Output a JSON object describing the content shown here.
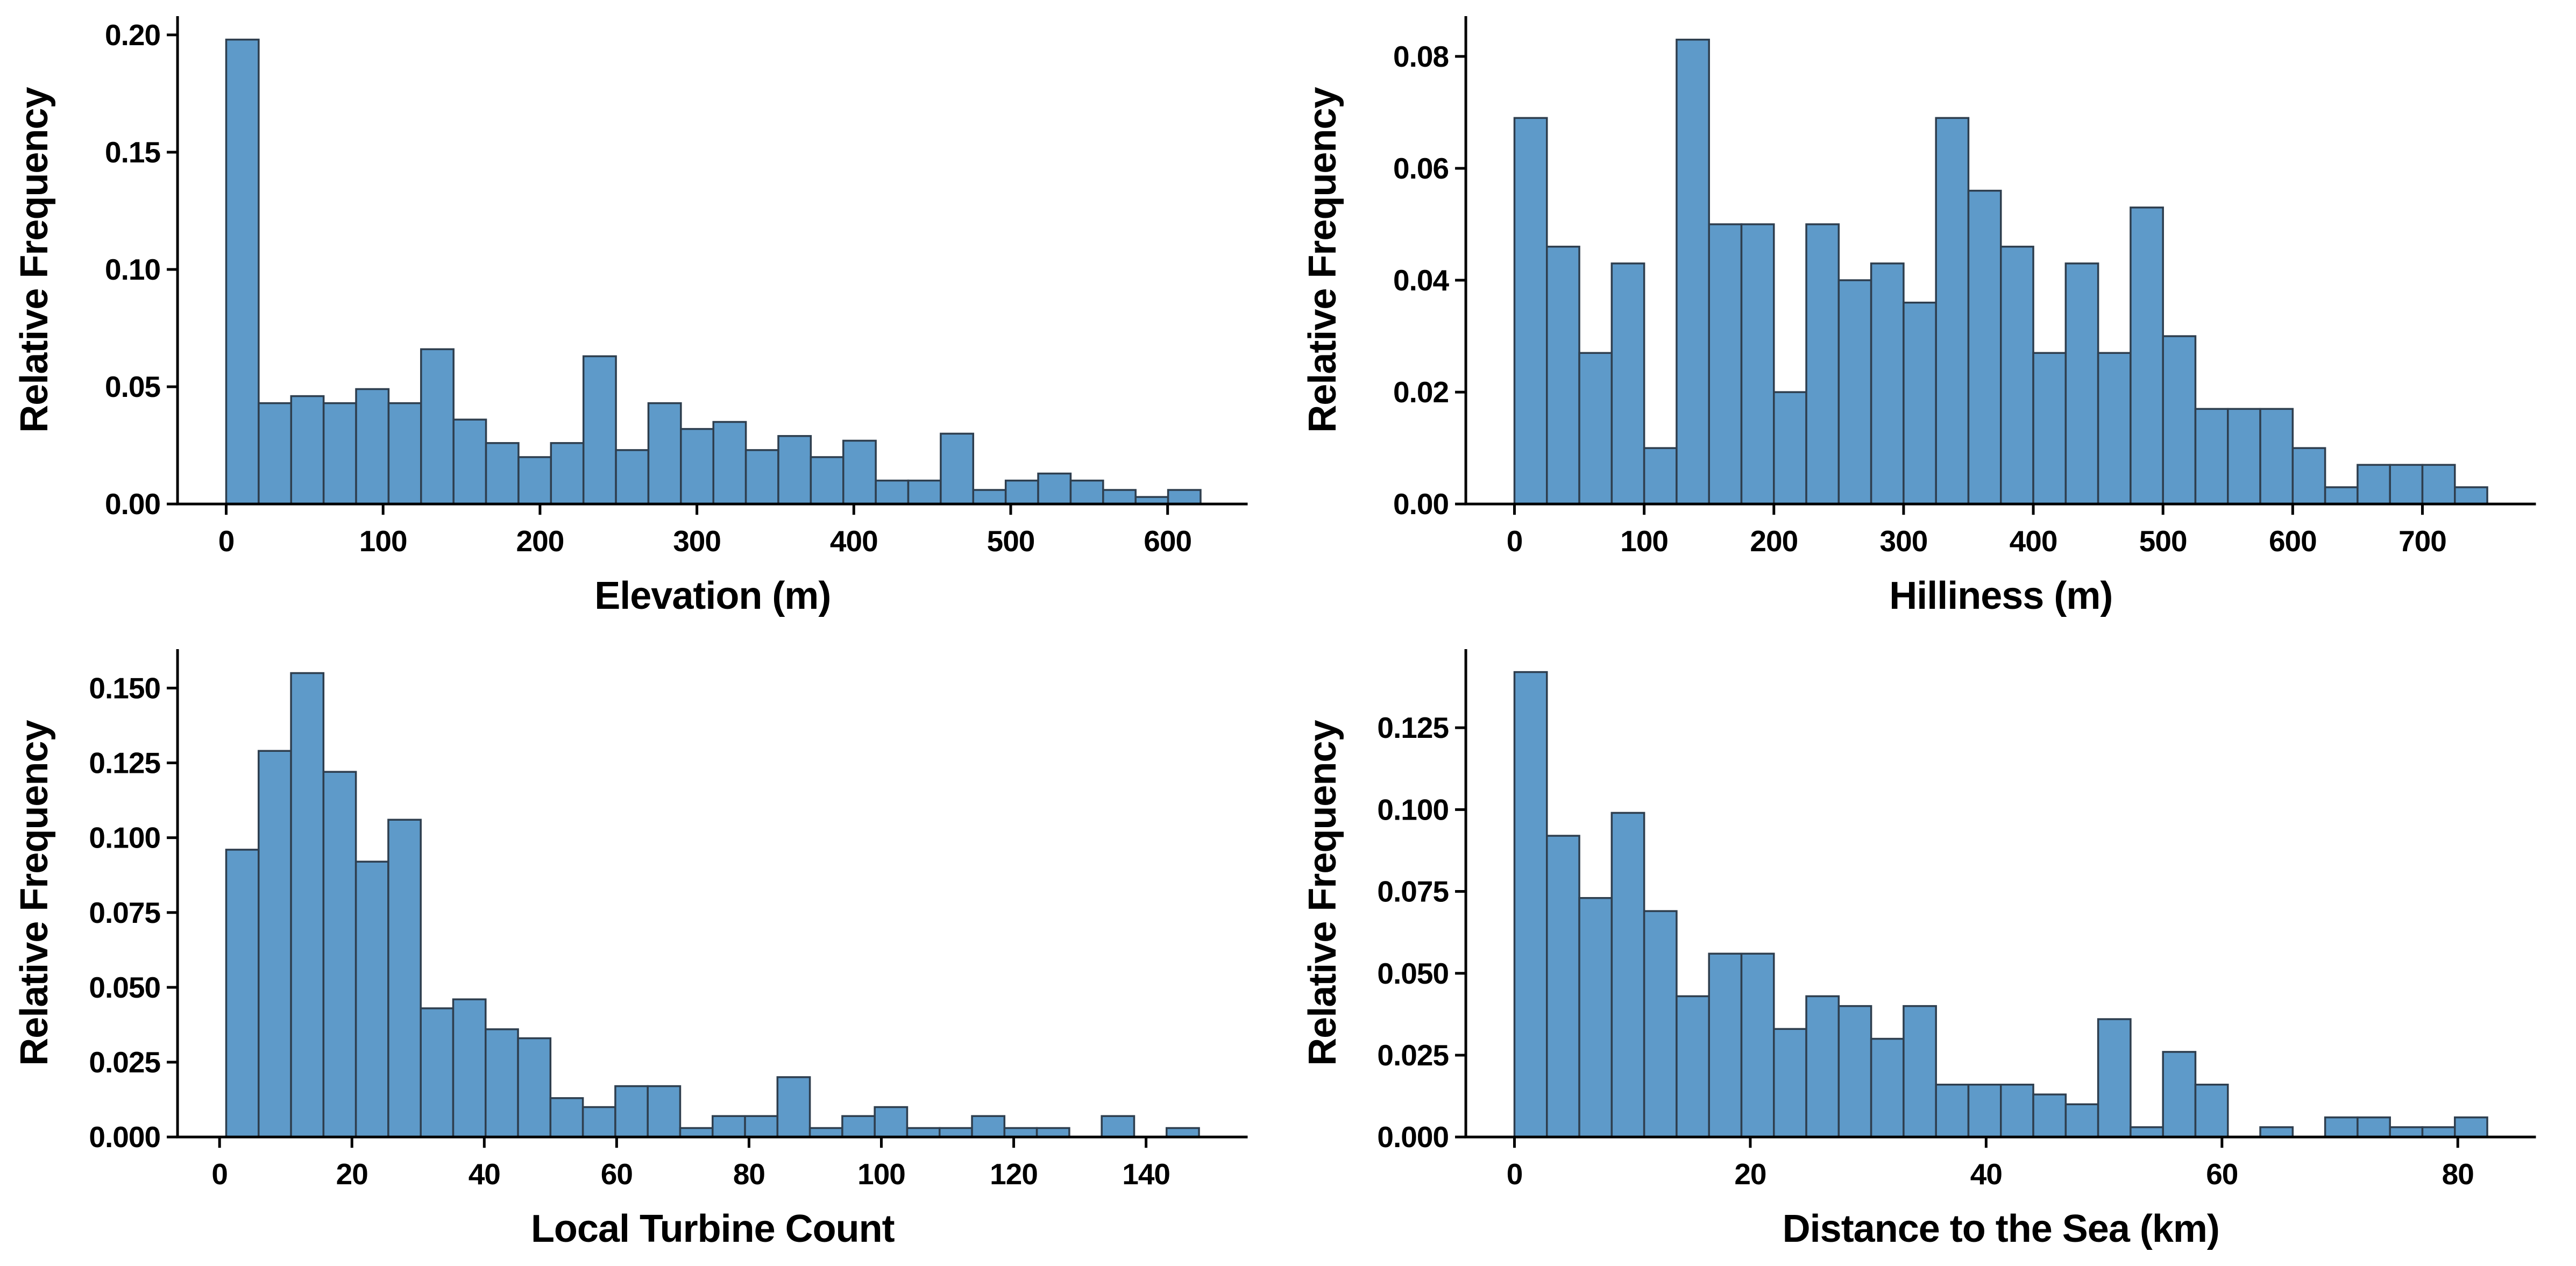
{
  "page": {
    "background": "#ffffff",
    "figure_type": "2x2 grid of histograms"
  },
  "styles": {
    "bar_fill": "#5E9AC9",
    "bar_stroke": "#2E3E4E",
    "axis_color": "#000000",
    "text_color": "#000000",
    "tick_font_size": 55,
    "label_font_size": 72
  },
  "chart_data": [
    {
      "type": "bar",
      "name": "elevation-histogram",
      "title": "",
      "xlabel": "Elevation (m)",
      "ylabel": "Relative Frequency",
      "grid": false,
      "legend": null,
      "bin_start": 0,
      "bin_width": 20.7,
      "values": [
        0.198,
        0.043,
        0.046,
        0.043,
        0.049,
        0.043,
        0.066,
        0.036,
        0.026,
        0.02,
        0.026,
        0.063,
        0.023,
        0.043,
        0.032,
        0.035,
        0.023,
        0.029,
        0.02,
        0.027,
        0.01,
        0.01,
        0.03,
        0.006,
        0.01,
        0.013,
        0.01,
        0.006,
        0.003,
        0.006
      ],
      "xlim": [
        -31,
        651
      ],
      "ylim": [
        0,
        0.208
      ],
      "xtick_values": [
        0,
        100,
        200,
        300,
        400,
        500,
        600
      ],
      "xtick_labels": [
        "0",
        "100",
        "200",
        "300",
        "400",
        "500",
        "600"
      ],
      "ytick_values": [
        0.0,
        0.05,
        0.1,
        0.15,
        0.2
      ],
      "ytick_labels": [
        "0.00",
        "0.05",
        "0.10",
        "0.15",
        "0.20"
      ]
    },
    {
      "type": "bar",
      "name": "hilliness-histogram",
      "title": "",
      "xlabel": "Hilliness (m)",
      "ylabel": "Relative Frequency",
      "grid": false,
      "legend": null,
      "bin_start": 0,
      "bin_width": 25,
      "values": [
        0.069,
        0.046,
        0.027,
        0.043,
        0.01,
        0.083,
        0.05,
        0.05,
        0.02,
        0.05,
        0.04,
        0.043,
        0.036,
        0.069,
        0.056,
        0.046,
        0.027,
        0.043,
        0.027,
        0.053,
        0.03,
        0.017,
        0.017,
        0.017,
        0.01,
        0.003,
        0.007,
        0.007,
        0.007,
        0.003
      ],
      "xlim": [
        -37.5,
        787.5
      ],
      "ylim": [
        0,
        0.0872
      ],
      "xtick_values": [
        0,
        100,
        200,
        300,
        400,
        500,
        600,
        700
      ],
      "xtick_labels": [
        "0",
        "100",
        "200",
        "300",
        "400",
        "500",
        "600",
        "700"
      ],
      "ytick_values": [
        0.0,
        0.02,
        0.04,
        0.06,
        0.08
      ],
      "ytick_labels": [
        "0.00",
        "0.02",
        "0.04",
        "0.06",
        "0.08"
      ]
    },
    {
      "type": "bar",
      "name": "local-turbine-count-histogram",
      "title": "",
      "xlabel": "Local Turbine Count",
      "ylabel": "Relative Frequency",
      "grid": false,
      "legend": null,
      "bin_start": 1,
      "bin_width": 4.9,
      "values": [
        0.096,
        0.129,
        0.155,
        0.122,
        0.092,
        0.106,
        0.043,
        0.046,
        0.036,
        0.033,
        0.013,
        0.01,
        0.017,
        0.017,
        0.003,
        0.007,
        0.007,
        0.02,
        0.003,
        0.007,
        0.01,
        0.003,
        0.003,
        0.007,
        0.003,
        0.003,
        0,
        0.007,
        0,
        0.003
      ],
      "xlim": [
        -6.35,
        155.35
      ],
      "ylim": [
        0,
        0.163
      ],
      "xtick_values": [
        0,
        20,
        40,
        60,
        80,
        100,
        120,
        140
      ],
      "xtick_labels": [
        "0",
        "20",
        "40",
        "60",
        "80",
        "100",
        "120",
        "140"
      ],
      "ytick_values": [
        0.0,
        0.025,
        0.05,
        0.075,
        0.1,
        0.125,
        0.15
      ],
      "ytick_labels": [
        "0.000",
        "0.025",
        "0.050",
        "0.075",
        "0.100",
        "0.125",
        "0.150"
      ]
    },
    {
      "type": "bar",
      "name": "distance-to-sea-histogram",
      "title": "",
      "xlabel": "Distance to the Sea (km)",
      "ylabel": "Relative Frequency",
      "grid": false,
      "legend": null,
      "bin_start": 0,
      "bin_width": 2.75,
      "values": [
        0.142,
        0.092,
        0.073,
        0.099,
        0.069,
        0.043,
        0.056,
        0.056,
        0.033,
        0.043,
        0.04,
        0.03,
        0.04,
        0.016,
        0.016,
        0.016,
        0.013,
        0.01,
        0.036,
        0.003,
        0.026,
        0.016,
        0,
        0.003,
        0,
        0.006,
        0.006,
        0.003,
        0.003,
        0.006
      ],
      "xlim": [
        -4.125,
        86.625
      ],
      "ylim": [
        0,
        0.149
      ],
      "xtick_values": [
        0,
        20,
        40,
        60,
        80
      ],
      "xtick_labels": [
        "0",
        "20",
        "40",
        "60",
        "80"
      ],
      "ytick_values": [
        0.0,
        0.025,
        0.05,
        0.075,
        0.1,
        0.125
      ],
      "ytick_labels": [
        "0.000",
        "0.025",
        "0.050",
        "0.075",
        "0.100",
        "0.125"
      ]
    }
  ]
}
